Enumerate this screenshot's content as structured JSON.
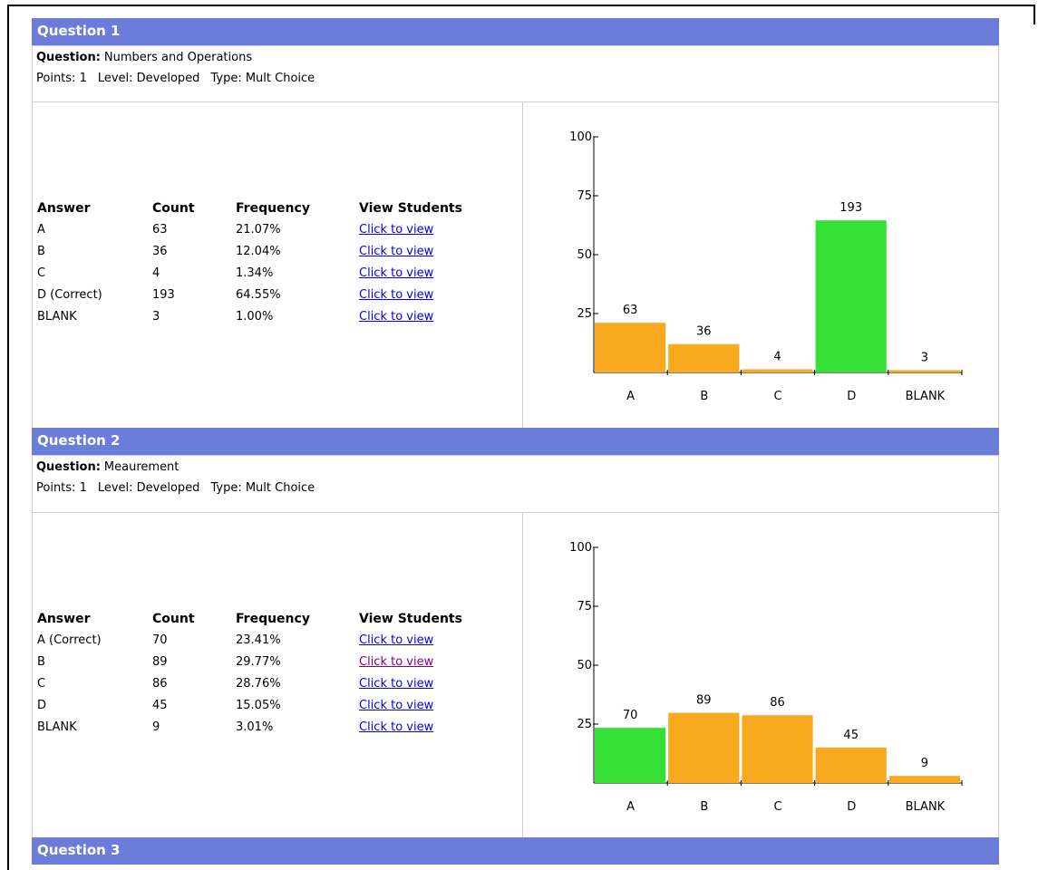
{
  "questions": [
    {
      "title": "Question 1",
      "label": "Question:",
      "text": "Numbers and Operations",
      "points": "Points: 1",
      "level": "Level: Developed",
      "qtype": "Type: Mult Choice",
      "headers": [
        "Answer",
        "Count",
        "Frequency",
        "View Students"
      ],
      "rows": [
        [
          "A",
          "63",
          "21.07%",
          "Click to view"
        ],
        [
          "B",
          "36",
          "12.04%",
          "Click to view"
        ],
        [
          "C",
          "4",
          "1.34%",
          "Click to view"
        ],
        [
          "D (Correct)",
          "193",
          "64.55%",
          "Click to view"
        ],
        [
          "BLANK",
          "3",
          "1.00%",
          "Click to view"
        ]
      ],
      "visited_rows": []
    },
    {
      "title": "Question 2",
      "label": "Question:",
      "text": "Meaurement",
      "points": "Points: 1",
      "level": "Level: Developed",
      "qtype": "Type: Mult Choice",
      "headers": [
        "Answer",
        "Count",
        "Frequency",
        "View Students"
      ],
      "rows": [
        [
          "A (Correct)",
          "70",
          "23.41%",
          "Click to view"
        ],
        [
          "B",
          "89",
          "29.77%",
          "Click to view"
        ],
        [
          "C",
          "86",
          "28.76%",
          "Click to view"
        ],
        [
          "D",
          "45",
          "15.05%",
          "Click to view"
        ],
        [
          "BLANK",
          "9",
          "3.01%",
          "Click to view"
        ]
      ],
      "visited_rows": [
        1
      ]
    },
    {
      "title": "Question 3"
    }
  ],
  "chart_data": [
    {
      "type": "bar",
      "categories": [
        "A",
        "B",
        "C",
        "D",
        "BLANK"
      ],
      "values": [
        21.07,
        12.04,
        1.34,
        64.55,
        1.0
      ],
      "colors": [
        "#f8a91d",
        "#f8a91d",
        "#f8a91d",
        "#33e033",
        "#f8a91d"
      ],
      "ylim": [
        0,
        100
      ],
      "yticks": [
        25,
        50,
        75,
        100
      ]
    },
    {
      "type": "bar",
      "categories": [
        "A",
        "B",
        "C",
        "D",
        "BLANK"
      ],
      "values": [
        23.41,
        29.77,
        28.76,
        15.05,
        3.01
      ],
      "colors": [
        "#33e033",
        "#f8a91d",
        "#f8a91d",
        "#f8a91d",
        "#f8a91d"
      ],
      "ylim": [
        0,
        100
      ],
      "yticks": [
        25,
        50,
        75,
        100
      ]
    }
  ]
}
